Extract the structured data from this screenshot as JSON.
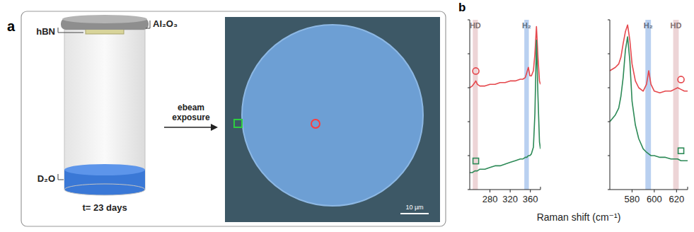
{
  "panel_a": {
    "label": "a",
    "substrate_label": "hBN",
    "window_label": "Al₂O₃",
    "liquid_label": "D₂O",
    "duration": "t= 23 days",
    "arrow_label": "ebeam exposure",
    "scale_bar": "10 µm"
  },
  "panel_b": {
    "label": "b",
    "x_label": "Raman shift (cm⁻¹)"
  },
  "chart_data": [
    {
      "type": "line",
      "x": [
        240,
        245,
        250,
        252,
        255,
        260,
        270,
        280,
        290,
        300,
        310,
        320,
        330,
        340,
        345,
        350,
        353,
        356,
        359,
        362,
        366,
        369,
        372,
        375,
        378,
        380
      ],
      "xlim": [
        240,
        380
      ],
      "xticks": [
        280,
        320,
        360
      ],
      "ylim": [
        0,
        100
      ],
      "yticks": [
        0,
        20,
        40,
        60,
        80,
        100
      ],
      "tick_labels": "x",
      "grid": false,
      "bands": [
        {
          "label": "HD",
          "range": [
            246,
            256
          ],
          "color": "#e9c9cc"
        },
        {
          "label": "H₂",
          "range": [
            348,
            357
          ],
          "color": "#a8c4ec"
        }
      ],
      "series": [
        {
          "color": "#e5484d",
          "marker": "circle",
          "values": [
            60,
            61,
            63,
            64,
            62,
            61,
            61,
            62,
            62,
            63,
            63,
            64,
            64,
            65,
            65,
            66,
            69,
            72,
            67,
            67,
            70,
            80,
            96,
            78,
            64,
            62
          ]
        },
        {
          "color": "#2d8a57",
          "marker": "square",
          "values": [
            10,
            10,
            11,
            11,
            11,
            12,
            12,
            13,
            14,
            14,
            15,
            16,
            17,
            18,
            18,
            19,
            19,
            20,
            20,
            21,
            25,
            45,
            88,
            55,
            28,
            24
          ]
        }
      ]
    },
    {
      "type": "line",
      "x": [
        560,
        565,
        568,
        570,
        572,
        574,
        576,
        578,
        580,
        583,
        586,
        590,
        593,
        595,
        597,
        600,
        605,
        610,
        615,
        618,
        621,
        624,
        627,
        630
      ],
      "xlim": [
        560,
        630
      ],
      "xticks": [
        580,
        600,
        620
      ],
      "ylim": [
        0,
        100
      ],
      "yticks": [
        0,
        20,
        40,
        60,
        80,
        100
      ],
      "tick_labels": "x",
      "grid": false,
      "bands": [
        {
          "label": "H₂",
          "range": [
            592,
            597
          ],
          "color": "#a8c4ec"
        },
        {
          "label": "HD",
          "range": [
            617,
            622
          ],
          "color": "#e9c9cc"
        }
      ],
      "series": [
        {
          "color": "#e5484d",
          "marker": "circle",
          "values": [
            70,
            72,
            74,
            78,
            86,
            93,
            97,
            88,
            74,
            64,
            60,
            58,
            62,
            70,
            62,
            58,
            57,
            58,
            58,
            59,
            60,
            59,
            58,
            58
          ]
        },
        {
          "color": "#2d8a57",
          "marker": "square",
          "values": [
            40,
            44,
            48,
            55,
            66,
            82,
            90,
            76,
            52,
            38,
            30,
            24,
            22,
            21,
            20,
            20,
            19,
            19,
            18,
            18,
            18,
            17,
            17,
            17
          ]
        }
      ]
    }
  ]
}
